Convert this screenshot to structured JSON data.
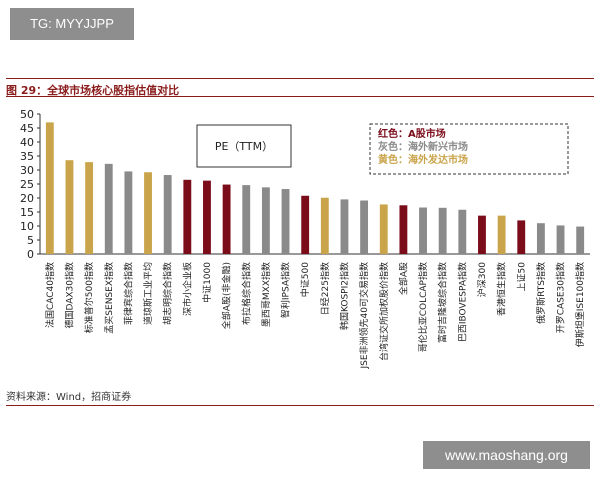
{
  "watermark_top": "TG: MYYJJPP",
  "watermark_bottom": "www.maoshang.org",
  "figure_title": "图 29：全球市场核心股指估值对比",
  "source": "资料来源：Wind，招商证券",
  "annotation": "PE（TTM）",
  "colors": {
    "gray": "#8a8a8a",
    "red": "#7b0c1a",
    "gold": "#c9a44a",
    "title": "#8b1c1c"
  },
  "chart_data": {
    "type": "bar",
    "title": "",
    "xlabel": "",
    "ylabel": "",
    "ylim": [
      0,
      50
    ],
    "yticks": [
      0,
      5,
      10,
      15,
      20,
      25,
      30,
      35,
      40,
      45,
      50
    ],
    "grid": false,
    "legend_position": "top-right",
    "legend": [
      {
        "label": "红色：A股市场",
        "color": "#7b0c1a"
      },
      {
        "label": "灰色：海外新兴市场",
        "color": "#8a8a8a"
      },
      {
        "label": "黄色：海外发达市场",
        "color": "#c9a44a"
      }
    ],
    "categories": [
      "法国CAC40指数",
      "德国DAX30指数",
      "标准普尔500指数",
      "孟买SENSEX指数",
      "菲律宾综合指数",
      "道琼斯工业平均",
      "胡志明综合指数",
      "深市小企业板",
      "中证1000",
      "全部A股(非金融)",
      "布拉格综合指数",
      "墨西哥MXX指数",
      "智利IPSA指数",
      "中证500",
      "日经225指数",
      "韩国KOSPI2指数",
      "JSE非洲领先40可交易指数",
      "台湾证交所加权股价指数",
      "全部A股",
      "哥伦比亚COLCAP指数",
      "富时吉隆坡综合指数",
      "巴西IBOVESPA指数",
      "沪深300",
      "香港恒生指数",
      "上证50",
      "俄罗斯RTS指数",
      "开罗CASE30指数",
      "伊斯坦堡ISE100指数"
    ],
    "values": [
      47,
      33.5,
      32.8,
      32.2,
      29.5,
      29.2,
      28.2,
      26.5,
      26.2,
      24.8,
      24.6,
      23.8,
      23.2,
      20.8,
      20.1,
      19.5,
      19.1,
      17.7,
      17.4,
      16.6,
      16.5,
      15.8,
      13.7,
      13.7,
      12,
      11,
      10.2,
      9.8
    ],
    "bar_colors": [
      "gold",
      "gold",
      "gold",
      "gray",
      "gray",
      "gold",
      "gray",
      "red",
      "red",
      "red",
      "gray",
      "gray",
      "gray",
      "red",
      "gold",
      "gray",
      "gray",
      "gold",
      "red",
      "gray",
      "gray",
      "gray",
      "red",
      "gold",
      "red",
      "gray",
      "gray",
      "gray"
    ]
  }
}
